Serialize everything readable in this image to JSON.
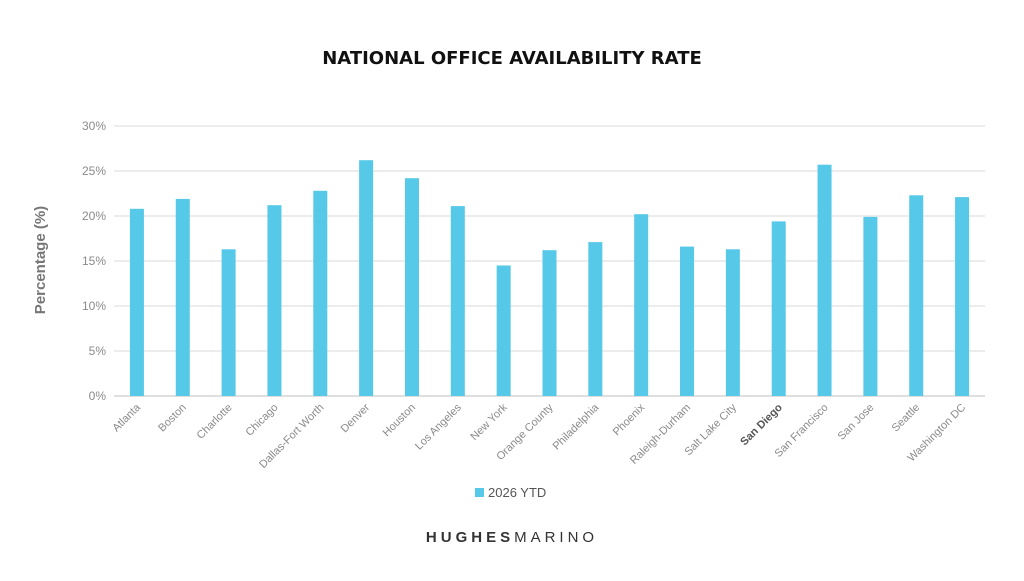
{
  "colors": {
    "bar": "#56c8e8",
    "grid": "#d9d9d9",
    "axis": "#bfbfbf"
  },
  "brand": {
    "part1": "HUGHES",
    "part2": "MARINO"
  },
  "chart_data": {
    "type": "bar",
    "title": "NATIONAL OFFICE AVAILABILITY RATE",
    "ylabel": "Percentage (%)",
    "xlabel": "",
    "ylim": [
      0,
      30
    ],
    "yticks": [
      0,
      5,
      10,
      15,
      20,
      25,
      30
    ],
    "ytick_labels": [
      "0%",
      "5%",
      "10%",
      "15%",
      "20%",
      "25%",
      "30%"
    ],
    "grid": true,
    "legend": "bottom-center",
    "highlighted_category": "San Diego",
    "categories": [
      "Atlanta",
      "Boston",
      "Charlotte",
      "Chicago",
      "Dallas-Fort Worth",
      "Denver",
      "Houston",
      "Los Angeles",
      "New York",
      "Orange County",
      "Philadelphia",
      "Phoenix",
      "Raleigh-Durham",
      "Salt Lake City",
      "San Diego",
      "San Francisco",
      "San Jose",
      "Seattle",
      "Washington DC"
    ],
    "series": [
      {
        "name": "2026 YTD",
        "values": [
          20.8,
          21.9,
          16.3,
          21.2,
          22.8,
          26.2,
          24.2,
          21.1,
          14.5,
          16.2,
          17.1,
          20.2,
          16.6,
          16.3,
          19.4,
          25.7,
          19.9,
          22.3,
          22.1
        ]
      }
    ]
  }
}
